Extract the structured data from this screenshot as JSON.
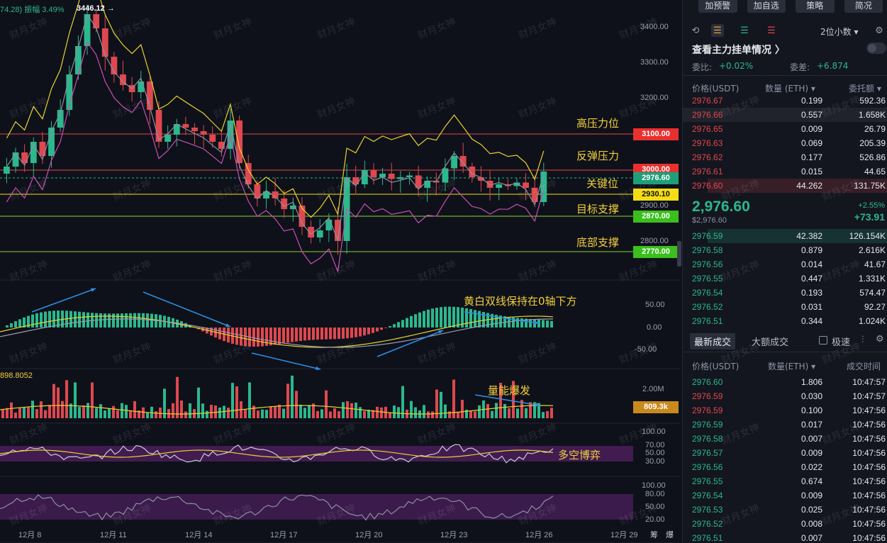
{
  "header": {
    "range_info": "74.28) 振幅 3.49%",
    "high_marker": "3446.12 →",
    "vol_ma": "898.8052"
  },
  "axis": {
    "price_ticks": [
      "3400.00",
      "3300.00",
      "3200.00",
      "2900.00",
      "2800.00"
    ],
    "macd_ticks": [
      "50.00",
      "0.00",
      "-50.00"
    ],
    "vol_ticks": [
      "2.00M"
    ],
    "rsi_ticks": [
      "100.00",
      "70.00",
      "50.00",
      "30.00"
    ],
    "stoch_ticks": [
      "100.00",
      "80.00",
      "50.00",
      "20.00"
    ],
    "dates": [
      "12月 8",
      "12月 11",
      "12月 14",
      "12月 17",
      "12月 20",
      "12月 23",
      "12月 26",
      "12月 29"
    ],
    "corner_labels": [
      "筹",
      "爆"
    ]
  },
  "badges": [
    {
      "text": "3100.00",
      "color": "#e8302f"
    },
    {
      "text": "3000.00",
      "color": "#e8302f"
    },
    {
      "text": "2976.60",
      "color": "#1f9e7a"
    },
    {
      "text": "2930.10",
      "color": "#f5dd16"
    },
    {
      "text": "2870.00",
      "color": "#3bbf1f"
    },
    {
      "text": "2770.00",
      "color": "#3bbf1f"
    },
    {
      "text": "809.3k",
      "color": "#c98a1d"
    }
  ],
  "levels": {
    "high_pressure": "高压力位",
    "rebound_pressure": "反弹压力",
    "key_level": "关键位",
    "target_support": "目标支撑",
    "bottom_support": "底部支撑"
  },
  "annotations": {
    "macd_note": "黄白双线保持在0轴下方",
    "volume_note": "量能爆发",
    "rsi_note": "多空博弈"
  },
  "watermark": "财月女神",
  "panel": {
    "top_buttons": [
      "加预警",
      "加自选",
      "策略",
      "简况"
    ],
    "precision": "2位小数 ▾",
    "section_title": "查看主力挂单情况 〉",
    "ratio_label": "委比:",
    "ratio_value": "+0.02%",
    "diff_label": "委差:",
    "diff_value": "+6.874",
    "col_price": "价格(USDT)",
    "col_qty": "数量 (ETH) ▾",
    "col_amount": "委托额 ▾",
    "asks": [
      {
        "price": "2976.67",
        "qty": "0.199",
        "amount": "592.36"
      },
      {
        "price": "2976.66",
        "qty": "0.557",
        "amount": "1.658K"
      },
      {
        "price": "2976.65",
        "qty": "0.009",
        "amount": "26.79"
      },
      {
        "price": "2976.63",
        "qty": "0.069",
        "amount": "205.39"
      },
      {
        "price": "2976.62",
        "qty": "0.177",
        "amount": "526.86"
      },
      {
        "price": "2976.61",
        "qty": "0.015",
        "amount": "44.65"
      },
      {
        "price": "2976.60",
        "qty": "44.262",
        "amount": "131.75K"
      }
    ],
    "last_price": "2,976.60",
    "last_price_sub": "$2,976.60",
    "change_pct": "+2.55%",
    "change_abs": "+73.91",
    "bids": [
      {
        "price": "2976.59",
        "qty": "42.382",
        "amount": "126.154K"
      },
      {
        "price": "2976.58",
        "qty": "0.879",
        "amount": "2.616K"
      },
      {
        "price": "2976.56",
        "qty": "0.014",
        "amount": "41.67"
      },
      {
        "price": "2976.55",
        "qty": "0.447",
        "amount": "1.331K"
      },
      {
        "price": "2976.54",
        "qty": "0.193",
        "amount": "574.47"
      },
      {
        "price": "2976.52",
        "qty": "0.031",
        "amount": "92.27"
      },
      {
        "price": "2976.51",
        "qty": "0.344",
        "amount": "1.024K"
      }
    ],
    "tabs": [
      "最新成交",
      "大额成交"
    ],
    "fast_label": "极速",
    "trade_col_price": "价格(USDT)",
    "trade_col_qty": "数量(ETH) ▾",
    "trade_col_time": "成交时间",
    "trades": [
      {
        "price": "2976.60",
        "qty": "1.806",
        "time": "10:47:57",
        "side": "buy"
      },
      {
        "price": "2976.59",
        "qty": "0.030",
        "time": "10:47:57",
        "side": "sell"
      },
      {
        "price": "2976.59",
        "qty": "0.100",
        "time": "10:47:56",
        "side": "sell"
      },
      {
        "price": "2976.59",
        "qty": "0.017",
        "time": "10:47:56",
        "side": "buy"
      },
      {
        "price": "2976.58",
        "qty": "0.007",
        "time": "10:47:56",
        "side": "buy"
      },
      {
        "price": "2976.57",
        "qty": "0.009",
        "time": "10:47:56",
        "side": "buy"
      },
      {
        "price": "2976.56",
        "qty": "0.022",
        "time": "10:47:56",
        "side": "buy"
      },
      {
        "price": "2976.55",
        "qty": "0.674",
        "time": "10:47:56",
        "side": "buy"
      },
      {
        "price": "2976.54",
        "qty": "0.009",
        "time": "10:47:56",
        "side": "buy"
      },
      {
        "price": "2976.53",
        "qty": "0.025",
        "time": "10:47:56",
        "side": "buy"
      },
      {
        "price": "2976.52",
        "qty": "0.008",
        "time": "10:47:56",
        "side": "buy"
      },
      {
        "price": "2976.51",
        "qty": "0.007",
        "time": "10:47:56",
        "side": "buy"
      }
    ]
  },
  "colors": {
    "up": "#2bb88d",
    "down": "#e0484f",
    "accent": "#f2d03b"
  }
}
